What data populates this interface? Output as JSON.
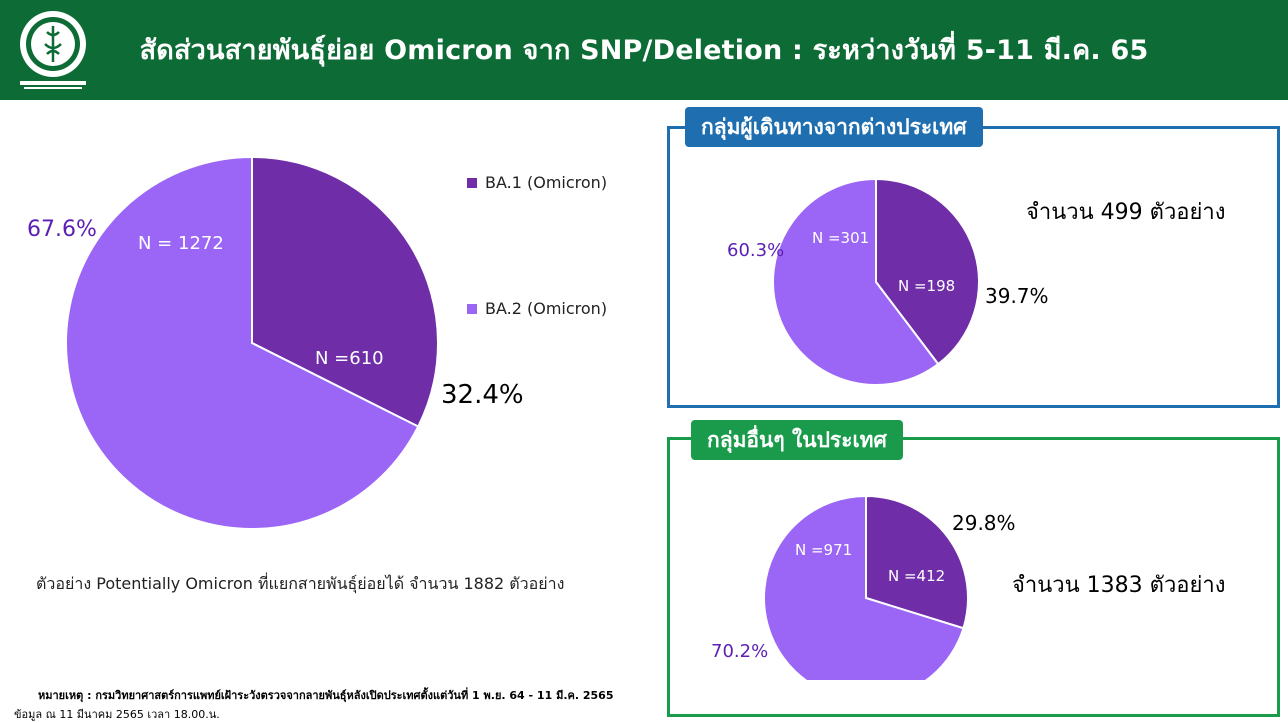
{
  "header": {
    "title": "สัดส่วนสายพันธุ์ย่อย Omicron จาก SNP/Deletion : ระหว่างวันที่ 5-11 มี.ค. 65",
    "bg_color": "#0d6b35",
    "logo_icon": "department-seal-icon"
  },
  "colors": {
    "ba1": "#6f2da8",
    "ba2": "#9b66f5",
    "travel_border": "#1f6fb0",
    "local_border": "#1a9b4b",
    "pct_purple": "#5b1fb5"
  },
  "chart_data": [
    {
      "type": "pie",
      "categories": [
        "BA.1 (Omicron)",
        "BA.2 (Omicron)"
      ],
      "values": [
        610,
        1272
      ],
      "percent_labels": [
        "32.4%",
        "67.6%"
      ],
      "n_labels": [
        "N =610",
        "N = 1272"
      ],
      "legend": [
        "BA.1 (Omicron)",
        "BA.2 (Omicron)"
      ],
      "legend_position": "right",
      "caption": "ตัวอย่าง Potentially Omicron ที่แยกสายพันธุ์ย่อยได้ จำนวน 1882 ตัวอย่าง"
    },
    {
      "type": "pie",
      "title": "กลุ่มผู้เดินทางจากต่างประเทศ",
      "categories": [
        "BA.1 (Omicron)",
        "BA.2 (Omicron)"
      ],
      "values": [
        198,
        301
      ],
      "percent_labels": [
        "39.7%",
        "60.3%"
      ],
      "n_labels": [
        "N =198",
        "N =301"
      ],
      "count_text": "จำนวน 499 ตัวอย่าง"
    },
    {
      "type": "pie",
      "title": "กลุ่มอื่นๆ ในประเทศ",
      "categories": [
        "BA.1 (Omicron)",
        "BA.2 (Omicron)"
      ],
      "values": [
        412,
        971
      ],
      "percent_labels": [
        "29.8%",
        "70.2%"
      ],
      "n_labels": [
        "N =412",
        "N =971"
      ],
      "count_text": "จำนวน 1383 ตัวอย่าง"
    }
  ],
  "footnote": {
    "note": "หมายเหตุ :  กรมวิทยาศาสตร์การแพทย์เฝ้าระวังตรวจจากลายพันธุ์หลังเปิดประเทศตั้งแต่วันที่ 1 พ.ย. 64 -  11 มี.ค. 2565",
    "data_date": "ข้อมูล ณ 11 มีนาคม 2565 เวลา 18.00.น."
  }
}
